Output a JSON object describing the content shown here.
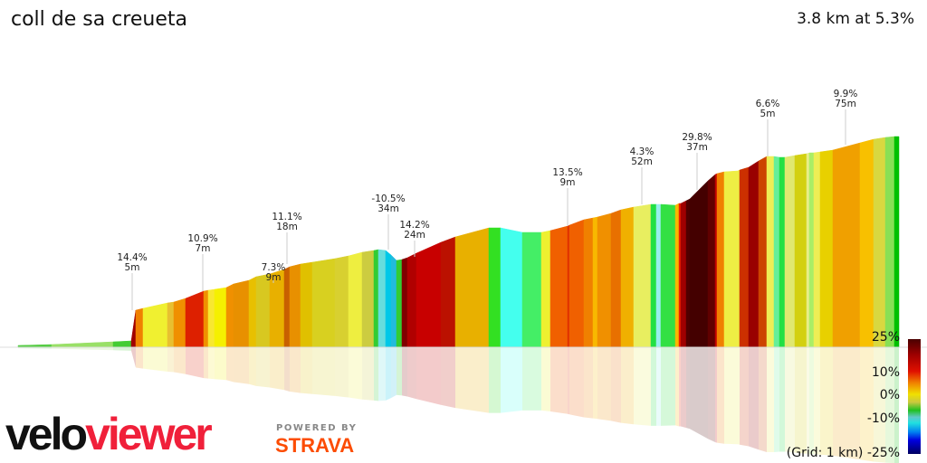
{
  "header": {
    "title": "coll de sa creueta",
    "stats": "3.8 km at 5.3%"
  },
  "annotations": [
    {
      "grade": "14.4%",
      "length": "5m"
    },
    {
      "grade": "10.9%",
      "length": "7m"
    },
    {
      "grade": "7.3%",
      "length": "9m"
    },
    {
      "grade": "11.1%",
      "length": "18m"
    },
    {
      "grade": "-10.5%",
      "length": "34m"
    },
    {
      "grade": "14.2%",
      "length": "24m"
    },
    {
      "grade": "13.5%",
      "length": "9m"
    },
    {
      "grade": "4.3%",
      "length": "52m"
    },
    {
      "grade": "29.8%",
      "length": "37m"
    },
    {
      "grade": "6.6%",
      "length": "5m"
    },
    {
      "grade": "9.9%",
      "length": "75m"
    }
  ],
  "legend": {
    "ticks": [
      "25%",
      "10%",
      "0%",
      "-10%",
      "-25%"
    ],
    "grid_label": "(Grid: 1 km)"
  },
  "branding": {
    "logo_part1": "velo",
    "logo_part2": "viewer",
    "powered_by": "POWERED BY",
    "strava": "STRAVA",
    "brand_red": "#f0203a",
    "strava_orange": "#fc4c02"
  }
}
